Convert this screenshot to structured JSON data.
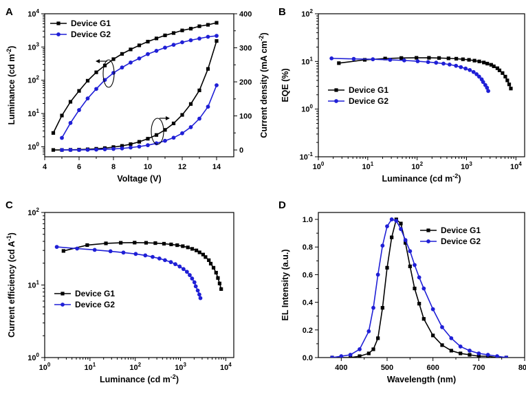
{
  "colors": {
    "g1": "#000000",
    "g2": "#1f1fd6"
  },
  "chart_data": [
    {
      "id": "A",
      "type": "line",
      "panel_label": "A",
      "xlabel": "Voltage (V)",
      "ylabel": "Luminance (cd m^-2)",
      "ylabel_right": "Current density (mA cm^-2)",
      "xlim": [
        4,
        15
      ],
      "xticks": [
        4,
        6,
        8,
        10,
        12,
        14
      ],
      "ylim_log": [
        0.5,
        10000
      ],
      "yticks_log": [
        1,
        10,
        100,
        1000,
        10000
      ],
      "y2lim": [
        -20,
        400
      ],
      "y2ticks": [
        0,
        100,
        200,
        300,
        400
      ],
      "legend": {
        "position": "top-left",
        "entries": [
          "Device G1",
          "Device G2"
        ]
      },
      "series": [
        {
          "name": "Device G1",
          "axis": "left",
          "marker": "square",
          "x": [
            4.5,
            5,
            5.5,
            6,
            6.5,
            7,
            7.5,
            8,
            8.5,
            9,
            9.5,
            10,
            10.5,
            11,
            11.5,
            12,
            12.5,
            13,
            13.5,
            14
          ],
          "y": [
            2.6,
            8.7,
            22.5,
            47.9,
            96.9,
            173.6,
            277.9,
            431.5,
            620.5,
            845.4,
            1121.6,
            1451,
            1812,
            2239,
            2631,
            3155,
            3565,
            4215,
            4651,
            5355
          ]
        },
        {
          "name": "Device G2",
          "axis": "left",
          "marker": "circle",
          "x": [
            5,
            5.5,
            6,
            6.5,
            7,
            7.5,
            8,
            8.5,
            9,
            9.5,
            10,
            10.5,
            11,
            11.5,
            12,
            12.5,
            13,
            13.5,
            14
          ],
          "y": [
            1.85,
            5.2,
            12.7,
            28.4,
            54.8,
            102.4,
            166.7,
            242,
            341.5,
            453.5,
            611.7,
            767.3,
            957.5,
            1163,
            1386,
            1598,
            1800,
            2028,
            2169
          ]
        },
        {
          "name": "Device G1",
          "axis": "right",
          "marker": "square",
          "x": [
            4.5,
            5,
            5.5,
            6,
            6.5,
            7,
            7.5,
            8,
            8.5,
            9,
            9.5,
            10,
            10.5,
            11,
            11.5,
            12,
            12.5,
            13,
            13.5,
            14
          ],
          "y": [
            0,
            0,
            0.5,
            1,
            2,
            3.5,
            5.5,
            8.5,
            12,
            17,
            24,
            33,
            44,
            59,
            78,
            103,
            135,
            175,
            238,
            320
          ]
        },
        {
          "name": "Device G2",
          "axis": "right",
          "marker": "circle",
          "x": [
            5,
            5.5,
            6,
            6.5,
            7,
            7.5,
            8,
            8.5,
            9,
            9.5,
            10,
            10.5,
            11,
            11.5,
            12,
            12.5,
            13,
            13.5,
            14
          ],
          "y": [
            0,
            0,
            0,
            0.5,
            1,
            2,
            3,
            4.5,
            7,
            10,
            14,
            19.5,
            27,
            36,
            49,
            67,
            92,
            127,
            190
          ]
        }
      ]
    },
    {
      "id": "B",
      "type": "line",
      "panel_label": "B",
      "xlabel": "Luminance (cd m^-2)",
      "ylabel": "EQE (%)",
      "xlim_log": [
        1,
        15000
      ],
      "xticks_log": [
        1,
        10,
        100,
        1000,
        10000
      ],
      "ylim_log": [
        0.1,
        100
      ],
      "yticks_log": [
        0.1,
        1,
        10,
        100
      ],
      "legend": {
        "position": "bottom-left",
        "entries": [
          "Device G1",
          "Device G2"
        ]
      },
      "series": [
        {
          "name": "Device G1",
          "marker": "square",
          "x": [
            2.6,
            8.7,
            22.5,
            47.9,
            96.9,
            173.6,
            277.9,
            431.5,
            620.5,
            845.4,
            1121.6,
            1451,
            1812,
            2239,
            2631,
            3155,
            3565,
            4215,
            4651,
            5355,
            6100,
            6700,
            7300,
            7900
          ],
          "y": [
            9.2,
            10.8,
            11.5,
            11.8,
            11.9,
            11.9,
            11.8,
            11.6,
            11.4,
            11.1,
            10.8,
            10.4,
            10,
            9.5,
            9,
            8.5,
            7.9,
            7.2,
            6.5,
            5.7,
            4.8,
            4,
            3.3,
            2.7
          ]
        },
        {
          "name": "Device G2",
          "marker": "circle",
          "x": [
            1.85,
            5.2,
            12.7,
            28.4,
            54.8,
            102.4,
            166.7,
            242,
            341.5,
            453.5,
            611.7,
            767.3,
            957.5,
            1163,
            1386,
            1598,
            1800,
            2028,
            2169,
            2400,
            2600,
            2750
          ],
          "y": [
            11.6,
            11.3,
            11.1,
            10.8,
            10.5,
            10.1,
            9.7,
            9.4,
            9,
            8.6,
            8.1,
            7.6,
            7.1,
            6.6,
            6,
            5.4,
            4.8,
            4.2,
            3.7,
            3.2,
            2.8,
            2.4
          ]
        }
      ]
    },
    {
      "id": "C",
      "type": "line",
      "panel_label": "C",
      "xlabel": "Luminance (cd m^-2)",
      "ylabel": "Current efficiency (cd A^-1)",
      "xlim_log": [
        1,
        15000
      ],
      "xticks_log": [
        1,
        10,
        100,
        1000,
        10000
      ],
      "ylim_log": [
        1,
        100
      ],
      "yticks_log": [
        1,
        10,
        100
      ],
      "legend": {
        "position": "bottom-left",
        "entries": [
          "Device G1",
          "Device G2"
        ]
      },
      "series": [
        {
          "name": "Device G1",
          "marker": "square",
          "x": [
            2.6,
            8.7,
            22.5,
            47.9,
            96.9,
            173.6,
            277.9,
            431.5,
            620.5,
            845.4,
            1121.6,
            1451,
            1812,
            2239,
            2631,
            3155,
            3565,
            4215,
            4651,
            5355,
            6100,
            6700,
            7300,
            7900
          ],
          "y": [
            29.5,
            35.5,
            37.5,
            38.2,
            38.4,
            38.2,
            37.8,
            37.1,
            36.3,
            35.4,
            34.3,
            33,
            31.5,
            30,
            28.2,
            26.3,
            24.3,
            22,
            19.7,
            17.3,
            14.8,
            12.5,
            10.5,
            8.8
          ]
        },
        {
          "name": "Device G2",
          "marker": "circle",
          "x": [
            1.85,
            5.2,
            12.7,
            28.4,
            54.8,
            102.4,
            166.7,
            242,
            341.5,
            453.5,
            611.7,
            767.3,
            957.5,
            1163,
            1386,
            1598,
            1800,
            2028,
            2169,
            2400,
            2600,
            2750
          ],
          "y": [
            33.5,
            31.8,
            30.5,
            29.2,
            28,
            26.8,
            25.6,
            24.4,
            23.2,
            22,
            20.7,
            19.4,
            18,
            16.6,
            15.2,
            13.7,
            12.3,
            10.9,
            9.6,
            8.4,
            7.4,
            6.6
          ]
        }
      ]
    },
    {
      "id": "D",
      "type": "line",
      "panel_label": "D",
      "xlabel": "Wavelength (nm)",
      "ylabel": "EL Intensity (a.u.)",
      "xlim": [
        350,
        800
      ],
      "xticks": [
        400,
        500,
        600,
        700,
        800
      ],
      "ylim": [
        0,
        1.05
      ],
      "yticks": [
        0.0,
        0.2,
        0.4,
        0.6,
        0.8,
        1.0
      ],
      "legend": {
        "position": "top-right",
        "entries": [
          "Device G1",
          "Device G2"
        ]
      },
      "series": [
        {
          "name": "Device G1",
          "marker": "square",
          "x": [
            380,
            400,
            420,
            440,
            460,
            470,
            480,
            490,
            500,
            510,
            520,
            530,
            540,
            550,
            560,
            570,
            580,
            600,
            620,
            640,
            660,
            680,
            700,
            720,
            740,
            760
          ],
          "y": [
            0,
            0,
            0,
            0.01,
            0.03,
            0.06,
            0.14,
            0.36,
            0.65,
            0.87,
            1.0,
            0.97,
            0.83,
            0.66,
            0.5,
            0.39,
            0.28,
            0.16,
            0.09,
            0.05,
            0.03,
            0.02,
            0.01,
            0.01,
            0,
            0
          ]
        },
        {
          "name": "Device G2",
          "marker": "circle",
          "x": [
            380,
            400,
            420,
            440,
            460,
            470,
            480,
            490,
            500,
            510,
            520,
            530,
            540,
            550,
            560,
            570,
            580,
            600,
            620,
            640,
            660,
            680,
            700,
            720,
            740,
            760
          ],
          "y": [
            0,
            0.01,
            0.02,
            0.06,
            0.19,
            0.36,
            0.6,
            0.81,
            0.95,
            1.0,
            0.99,
            0.93,
            0.85,
            0.77,
            0.67,
            0.58,
            0.5,
            0.35,
            0.22,
            0.14,
            0.08,
            0.05,
            0.03,
            0.02,
            0.01,
            0
          ]
        }
      ]
    }
  ]
}
